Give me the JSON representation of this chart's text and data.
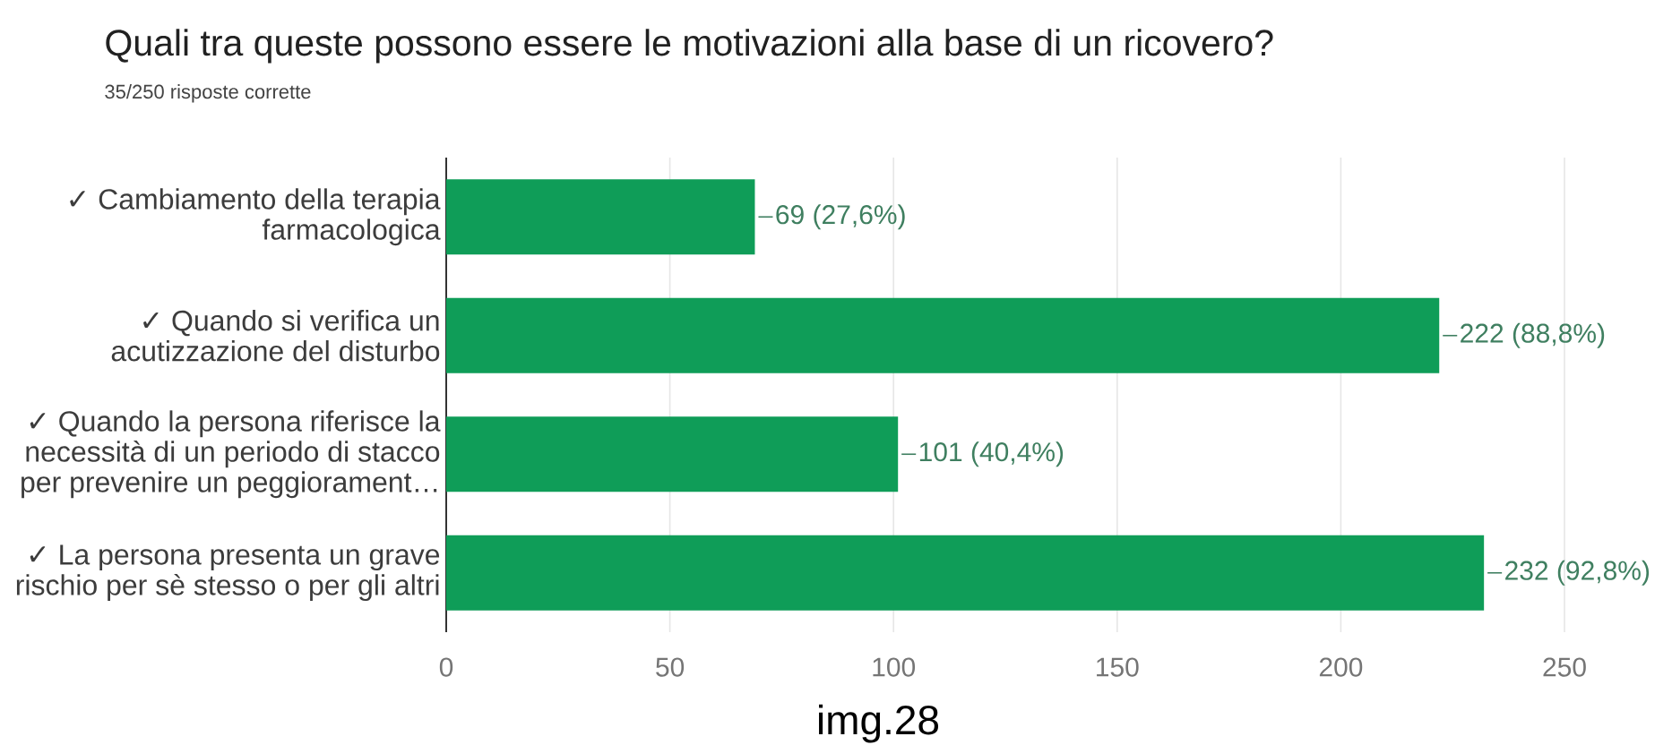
{
  "chart_data": {
    "type": "bar",
    "orientation": "horizontal",
    "title": "Quali tra queste possono essere le motivazioni alla base di un ricovero?",
    "subtitle": "35/250 risposte corrette",
    "categories": [
      "✓ Cambiamento della terapia farmacologica",
      "✓ Quando si verifica un acutizzazione del disturbo",
      "✓ Quando la persona riferisce la necessità di un periodo di stacco per prevenire un peggiorament…",
      "✓ La persona presenta un grave rischio per sè stesso o per gli altri"
    ],
    "values": [
      69,
      222,
      101,
      232
    ],
    "value_labels": [
      "69 (27,6%)",
      "222 (88,8%)",
      "101 (40,4%)",
      "232 (92,8%)"
    ],
    "color": "#0f9d58",
    "xlim": [
      0,
      250
    ],
    "xticks": [
      0,
      50,
      100,
      150,
      200,
      250
    ],
    "grid": "x",
    "annotations": [
      "img.28"
    ]
  }
}
